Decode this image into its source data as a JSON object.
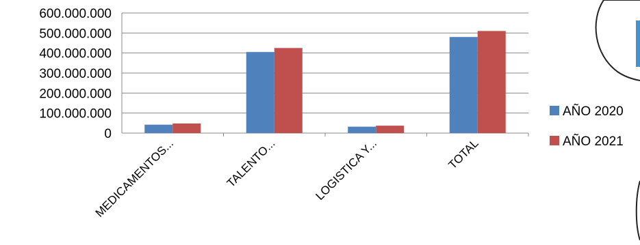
{
  "chart_data": {
    "type": "bar",
    "categories": [
      "MEDICAMENTOS...",
      "TALENTO...",
      "LOGISTICA Y...",
      "TOTAL"
    ],
    "series": [
      {
        "name": "AÑO 2020",
        "values": [
          42000000,
          405000000,
          32000000,
          480000000
        ],
        "color": "#4f81bd"
      },
      {
        "name": "AÑO 2021",
        "values": [
          48000000,
          425000000,
          37000000,
          510000000
        ],
        "color": "#c0504d"
      }
    ],
    "y_ticks": [
      "0",
      "100.000.000",
      "200.000.000",
      "300.000.000",
      "400.000.000",
      "500.000.000",
      "600.000.000"
    ],
    "ylim": [
      0,
      600000000
    ],
    "grid": true,
    "legend_position": "right"
  }
}
